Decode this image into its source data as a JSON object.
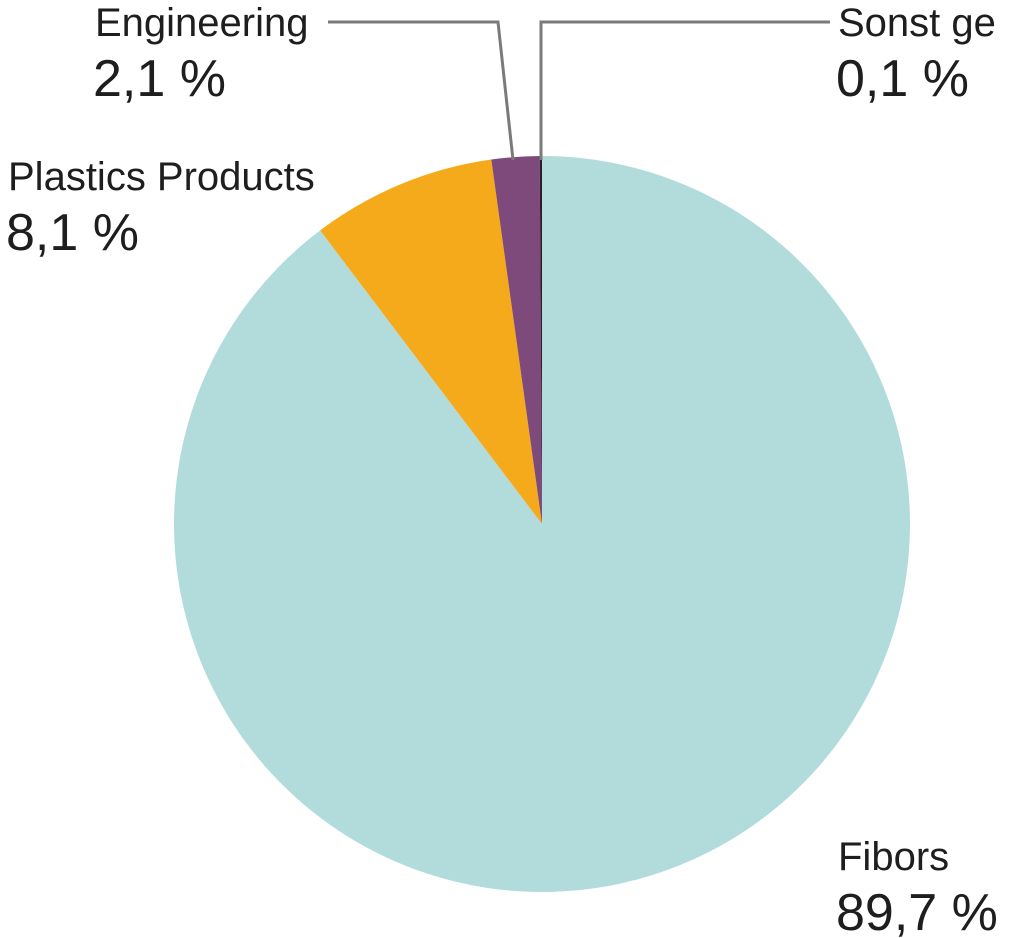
{
  "chart_data": {
    "type": "pie",
    "slices": [
      {
        "label": "Fibors",
        "value": 89.7,
        "value_label": "89,7 %",
        "color": "#b2dcdc"
      },
      {
        "label": "Plastics Products",
        "value": 8.1,
        "value_label": "8,1 %",
        "color": "#f5aa1b"
      },
      {
        "label": "Engineering",
        "value": 2.1,
        "value_label": "2,1 %",
        "color": "#7d4a7b"
      },
      {
        "label": "Sonst ge",
        "value": 0.1,
        "value_label": "0,1 %",
        "color": "#2a1e2a"
      }
    ],
    "start": "12 o'clock",
    "direction": "clockwise"
  }
}
